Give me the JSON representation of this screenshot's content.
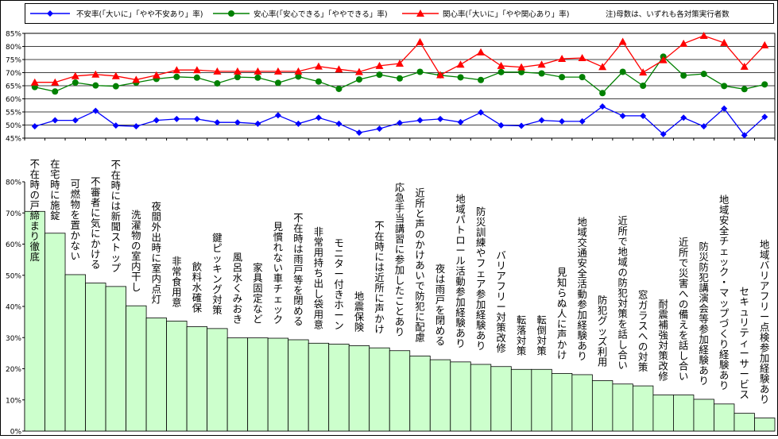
{
  "chart_data": [
    {
      "type": "line",
      "note": "注)母数は、いずれも各対策実行者数",
      "ylim": [
        45,
        85
      ],
      "yticks": [
        45,
        50,
        55,
        60,
        65,
        70,
        75,
        80,
        85
      ],
      "ytick_suffix": "%",
      "grid": true,
      "legend_position": "top",
      "series": [
        {
          "name": "不安率(「大いに」「やや不安あり」率)",
          "color": "#0000ff",
          "marker": "diamond",
          "values": [
            49.5,
            51.8,
            51.8,
            55.4,
            49.8,
            49.5,
            51.8,
            52.3,
            52.3,
            51,
            51,
            50.5,
            53.7,
            50.5,
            52.8,
            50.5,
            47.1,
            48.6,
            50.8,
            51.8,
            52.3,
            51.1,
            54.8,
            49.9,
            49.7,
            51.8,
            51.4,
            51.4,
            57.1,
            53.5,
            53.5,
            46.5,
            52.8,
            49.5,
            56.3,
            46.1,
            53.1
          ]
        },
        {
          "name": "安心率(「安心できる」「ややできる」率)",
          "color": "#008000",
          "marker": "circle",
          "values": [
            64.5,
            62.8,
            66.2,
            65.1,
            64.8,
            66.2,
            67.6,
            68.4,
            68.1,
            65.9,
            68.3,
            68.1,
            66.1,
            68.5,
            66.6,
            63.8,
            67.4,
            69.2,
            67.8,
            70.3,
            69,
            68.2,
            67.2,
            70.2,
            70.2,
            69.7,
            68.3,
            68.3,
            62.2,
            70.3,
            65,
            76.1,
            68.9,
            69.5,
            64.9,
            63.7,
            65.5
          ]
        },
        {
          "name": "関心率(「大いに」「やや関心あり」率)",
          "color": "#ff0000",
          "marker": "triangle",
          "values": [
            66.3,
            66.3,
            68.7,
            69.3,
            68.7,
            67.3,
            69,
            71,
            71,
            70.5,
            70.5,
            70.5,
            70.5,
            70.5,
            72.4,
            71.3,
            70.3,
            72.6,
            73.5,
            81.7,
            69.1,
            73.1,
            77.8,
            72.6,
            72.1,
            73.1,
            75.3,
            75.6,
            72.2,
            81.8,
            70.1,
            74.8,
            81.1,
            84.1,
            81.4,
            72.3,
            80.5
          ]
        }
      ]
    },
    {
      "type": "bar",
      "ylim": [
        0,
        80
      ],
      "yticks": [
        0,
        10,
        20,
        30,
        40,
        50,
        60,
        70,
        80
      ],
      "ytick_suffix": "%",
      "bar_color": "#ccffcc",
      "categories": [
        "不在時の戸締まり徹底",
        "在宅時に施錠",
        "可燃物を置かない",
        "不審者に気にかける",
        "不在時には新聞ストップ",
        "洗濯物の室内干し",
        "夜間外出時に室内点灯",
        "非常食用意",
        "飲料水確保",
        "鍵ピッキング対策",
        "風呂水くみおき",
        "家具固定など",
        "見慣れない車チェック",
        "不在時は雨戸等を閉める",
        "非常用持ち出し袋用意",
        "モニター付きホーン",
        "地震保険",
        "不在時には近所に声かけ",
        "応急手当講習に参加したことあり",
        "近所と声のかけあいで防犯に配慮",
        "夜は雨戸を閉める",
        "地域パトロール活動参加経験あり",
        "防災訓練やフェア参加経験あり",
        "バリアフリー対策改修",
        "転落対策",
        "転倒対策",
        "見知らぬ人に声かけ",
        "地域交通安全活動参加経験あり",
        "防犯グッズ利用",
        "近所で地域の防犯対策を話し合い",
        "窓ガラスへの対策",
        "耐震補強対策改修",
        "近所で災害への備えを話し合い",
        "防災防犯講演会等参加経験あり",
        "地域安全チェック・マップづくり経験あり",
        "セキュリティーサービス",
        "地域バリアフリー点検参加経験あり"
      ],
      "values": [
        70.5,
        63.5,
        50.2,
        47.5,
        46.4,
        40.2,
        36.3,
        35.3,
        33.5,
        32.9,
        29.9,
        29.9,
        29.8,
        29.3,
        28.2,
        27.9,
        27.4,
        26.7,
        25.8,
        24.1,
        22.9,
        22.2,
        21.4,
        20.7,
        19.8,
        19.8,
        18.5,
        18.1,
        16.2,
        15.1,
        14.5,
        11.6,
        11.6,
        10.2,
        8.7,
        5.7,
        4.2
      ]
    }
  ]
}
